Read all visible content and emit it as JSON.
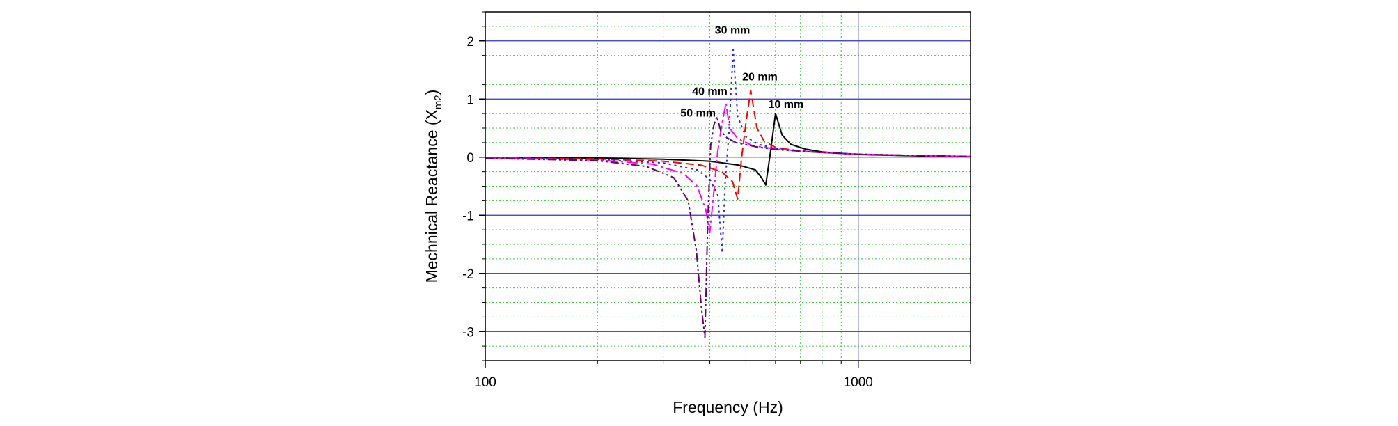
{
  "chart_data": {
    "type": "line",
    "x_scale": "log",
    "xlim": [
      100,
      2000
    ],
    "ylim": [
      -3.5,
      2.5
    ],
    "xlabel": "Frequency (Hz)",
    "ylabel_main": "Mechnical Reactance (X",
    "ylabel_sub": "m2",
    "ylabel_end": ")",
    "x_tick_labels": [
      {
        "v": 100,
        "t": "100"
      },
      {
        "v": 1000,
        "t": "1000"
      }
    ],
    "y_ticks": [
      -3,
      -2,
      -1,
      0,
      1,
      2
    ],
    "grid": {
      "major": true,
      "minor": true,
      "major_color": "#3333cc",
      "minor_color": "#33cc33"
    },
    "series": [
      {
        "name": "10 mm",
        "color": "#000000",
        "dash": "",
        "points": [
          [
            100,
            -0.005
          ],
          [
            200,
            -0.015
          ],
          [
            300,
            -0.035
          ],
          [
            400,
            -0.07
          ],
          [
            480,
            -0.14
          ],
          [
            530,
            -0.22
          ],
          [
            550,
            -0.35
          ],
          [
            565,
            -0.48
          ],
          [
            582,
            0.1
          ],
          [
            600,
            0.75
          ],
          [
            625,
            0.38
          ],
          [
            660,
            0.22
          ],
          [
            720,
            0.14
          ],
          [
            800,
            0.09
          ],
          [
            1000,
            0.045
          ],
          [
            1500,
            0.02
          ],
          [
            2000,
            0.01
          ]
        ]
      },
      {
        "name": "20 mm",
        "color": "#ff0000",
        "dash": "12,6",
        "points": [
          [
            100,
            -0.01
          ],
          [
            200,
            -0.03
          ],
          [
            300,
            -0.07
          ],
          [
            380,
            -0.14
          ],
          [
            430,
            -0.25
          ],
          [
            460,
            -0.42
          ],
          [
            475,
            -0.72
          ],
          [
            487,
            0.0
          ],
          [
            500,
            0.6
          ],
          [
            515,
            1.15
          ],
          [
            535,
            0.5
          ],
          [
            560,
            0.27
          ],
          [
            600,
            0.17
          ],
          [
            700,
            0.1
          ],
          [
            1000,
            0.05
          ],
          [
            2000,
            0.01
          ]
        ]
      },
      {
        "name": "30 mm",
        "color": "#2222ff",
        "dash": "3,5",
        "points": [
          [
            100,
            -0.01
          ],
          [
            200,
            -0.04
          ],
          [
            300,
            -0.1
          ],
          [
            370,
            -0.22
          ],
          [
            400,
            -0.38
          ],
          [
            420,
            -0.65
          ],
          [
            432,
            -1.65
          ],
          [
            440,
            -0.4
          ],
          [
            450,
            0.4
          ],
          [
            462,
            1.85
          ],
          [
            475,
            0.7
          ],
          [
            500,
            0.35
          ],
          [
            540,
            0.22
          ],
          [
            600,
            0.15
          ],
          [
            800,
            0.08
          ],
          [
            1000,
            0.05
          ],
          [
            2000,
            0.01
          ]
        ]
      },
      {
        "name": "40 mm",
        "color": "#ff00ff",
        "dash": "16,5,3,5",
        "points": [
          [
            100,
            -0.015
          ],
          [
            200,
            -0.05
          ],
          [
            280,
            -0.12
          ],
          [
            340,
            -0.28
          ],
          [
            370,
            -0.5
          ],
          [
            390,
            -0.9
          ],
          [
            400,
            -1.3
          ],
          [
            410,
            -0.6
          ],
          [
            420,
            0.1
          ],
          [
            432,
            0.6
          ],
          [
            442,
            0.93
          ],
          [
            452,
            0.5
          ],
          [
            475,
            0.32
          ],
          [
            520,
            0.2
          ],
          [
            600,
            0.14
          ],
          [
            800,
            0.08
          ],
          [
            1000,
            0.05
          ],
          [
            2000,
            0.01
          ]
        ]
      },
      {
        "name": "50 mm",
        "color": "#66006e",
        "dash": "12,4,3,4,3,4",
        "points": [
          [
            100,
            -0.02
          ],
          [
            200,
            -0.06
          ],
          [
            270,
            -0.16
          ],
          [
            320,
            -0.35
          ],
          [
            350,
            -0.75
          ],
          [
            368,
            -1.6
          ],
          [
            380,
            -2.6
          ],
          [
            388,
            -3.1
          ],
          [
            395,
            -1.1
          ],
          [
            402,
            0.2
          ],
          [
            410,
            0.55
          ],
          [
            418,
            0.7
          ],
          [
            428,
            0.45
          ],
          [
            445,
            0.33
          ],
          [
            470,
            0.25
          ],
          [
            530,
            0.18
          ],
          [
            600,
            0.13
          ],
          [
            800,
            0.08
          ],
          [
            1000,
            0.05
          ],
          [
            2000,
            0.01
          ]
        ]
      }
    ],
    "annotations": [
      {
        "text": "30 mm",
        "x": 460,
        "y": 2.12
      },
      {
        "text": "20 mm",
        "x": 545,
        "y": 1.32
      },
      {
        "text": "40 mm",
        "x": 400,
        "y": 1.07
      },
      {
        "text": "10 mm",
        "x": 640,
        "y": 0.85
      },
      {
        "text": "50 mm",
        "x": 372,
        "y": 0.7
      }
    ]
  }
}
